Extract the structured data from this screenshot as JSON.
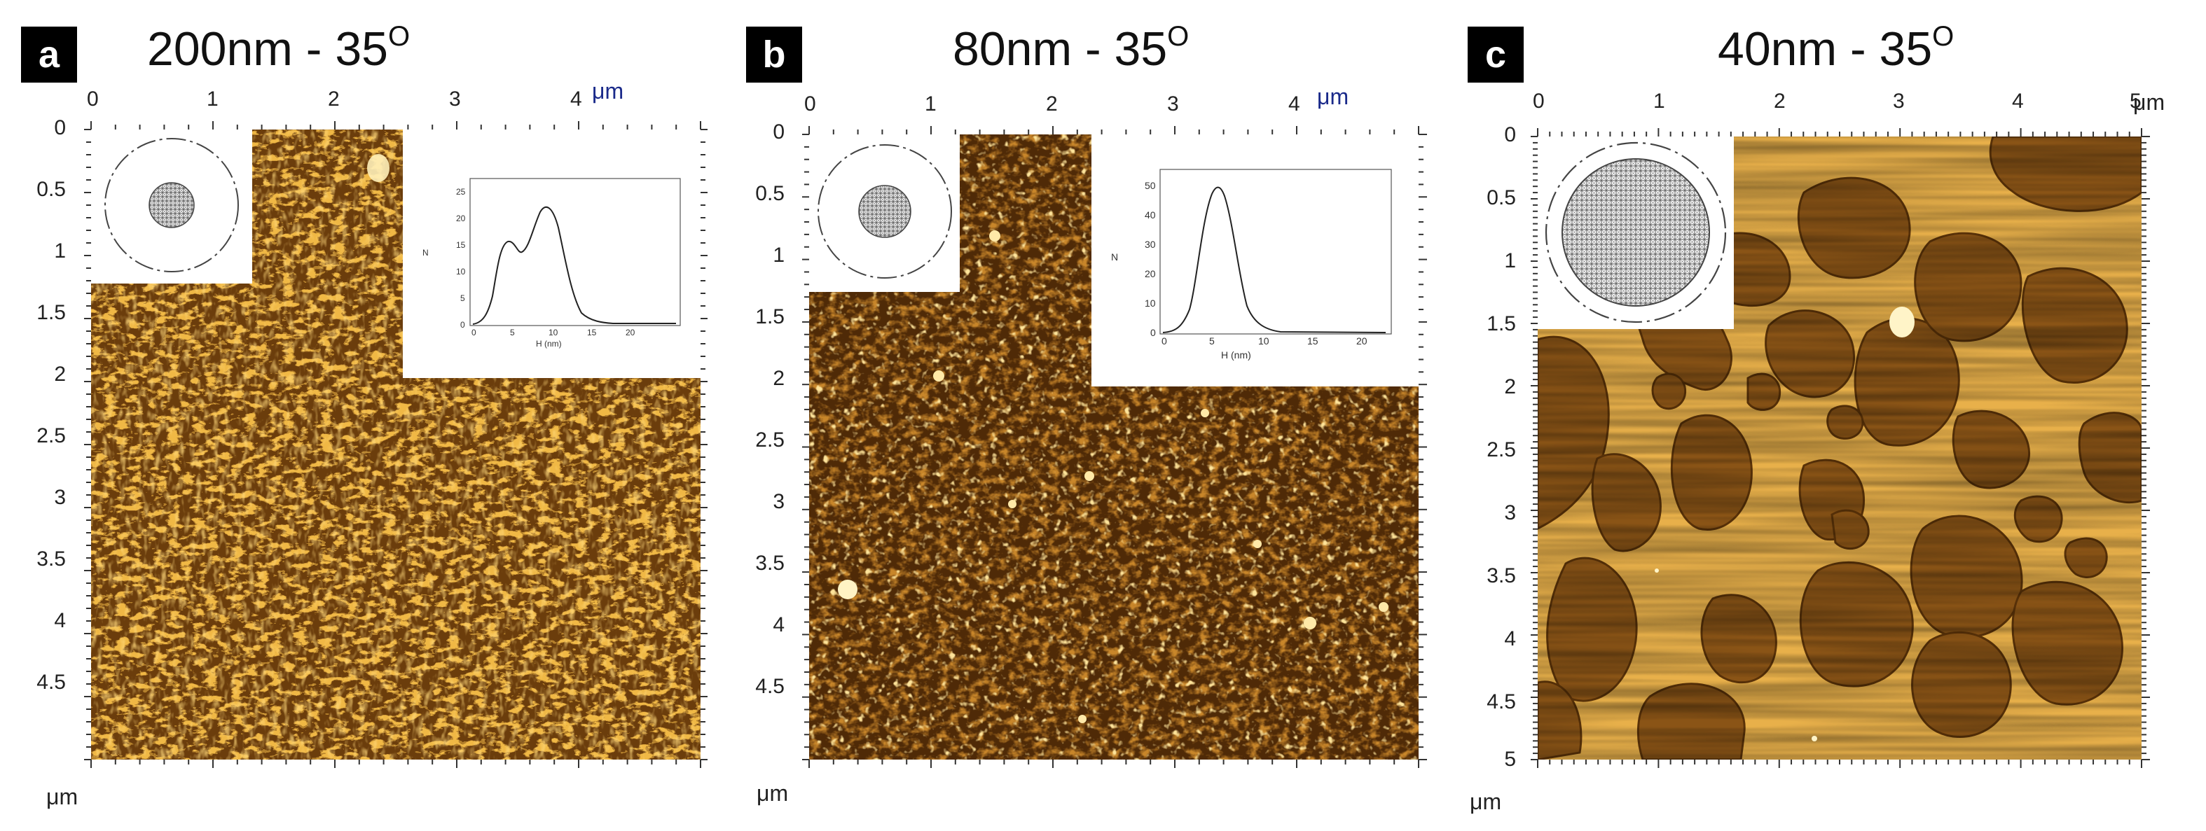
{
  "panels": [
    {
      "letter": "a",
      "title": "200nm - 35",
      "title_sup": "O",
      "x_unit": "μm",
      "y_unit": "μm",
      "x_ticks": [
        "0",
        "1",
        "2",
        "3",
        "4"
      ],
      "y_ticks": [
        "0",
        "0.5",
        "1",
        "1.5",
        "2",
        "2.5",
        "3",
        "3.5",
        "4",
        "4.5"
      ],
      "texture": "fine-grain",
      "histogram": {
        "ylabel": "N",
        "xlabel": "H (nm)",
        "x_ticks": [
          "0",
          "5",
          "10",
          "15",
          "20"
        ],
        "y_ticks": [
          "0",
          "5",
          "10",
          "15",
          "20",
          "25"
        ]
      }
    },
    {
      "letter": "b",
      "title": "80nm - 35",
      "title_sup": "O",
      "x_unit": "μm",
      "y_unit": "μm",
      "x_ticks": [
        "0",
        "1",
        "2",
        "3",
        "4"
      ],
      "y_ticks": [
        "0",
        "0.5",
        "1",
        "1.5",
        "2",
        "2.5",
        "3",
        "3.5",
        "4",
        "4.5"
      ],
      "texture": "dark-grain",
      "histogram": {
        "ylabel": "N",
        "xlabel": "H (nm)",
        "x_ticks": [
          "0",
          "5",
          "10",
          "15",
          "20"
        ],
        "y_ticks": [
          "0",
          "10",
          "20",
          "30",
          "40",
          "50"
        ]
      }
    },
    {
      "letter": "c",
      "title": "40nm - 35",
      "title_sup": "O",
      "x_unit": "μm",
      "y_unit": "μm",
      "x_ticks": [
        "0",
        "1",
        "2",
        "3",
        "4",
        "5"
      ],
      "y_ticks": [
        "0",
        "0.5",
        "1",
        "1.5",
        "2",
        "2.5",
        "3",
        "3.5",
        "4",
        "4.5",
        "5"
      ],
      "texture": "dewetted-islands"
    }
  ],
  "colors": {
    "afm_dark": "#5a3208",
    "afm_mid": "#a86a1a",
    "afm_light": "#e8b040",
    "afm_bright": "#f6d27a",
    "axis_unit_blue": "#1a2a8a"
  }
}
